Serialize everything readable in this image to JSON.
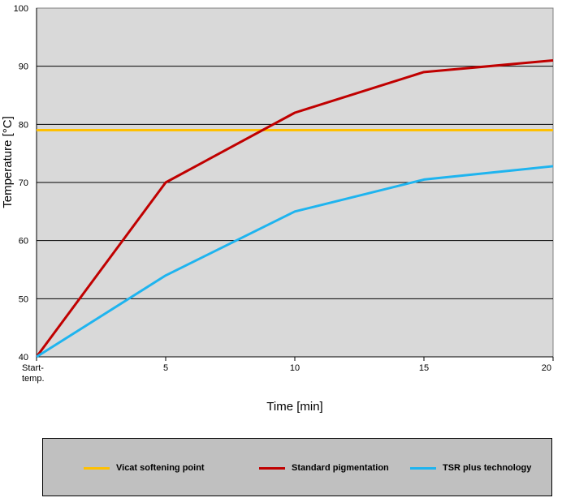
{
  "chart_data": {
    "type": "line",
    "xlabel": "Time [min]",
    "ylabel": "Temperature [°C]",
    "x_ticks": [
      "Start-\ntemp.",
      "5",
      "10",
      "15",
      "20"
    ],
    "x": [
      0,
      5,
      10,
      15,
      20
    ],
    "ylim": [
      40,
      100
    ],
    "y_ticks": [
      40,
      50,
      60,
      70,
      80,
      90,
      100
    ],
    "grid": true,
    "legend_position": "bottom",
    "plot_background": "#d9d9d9",
    "series": [
      {
        "name": "Vicat softening point",
        "color": "#ffc000",
        "values": [
          79,
          79,
          79,
          79,
          79
        ]
      },
      {
        "name": "Standard pigmentation",
        "color": "#c00000",
        "values": [
          40,
          70,
          82,
          89,
          91
        ]
      },
      {
        "name": "TSR plus technology",
        "color": "#1eb4ef",
        "values": [
          40,
          54,
          65,
          70.5,
          72.8
        ]
      }
    ]
  }
}
